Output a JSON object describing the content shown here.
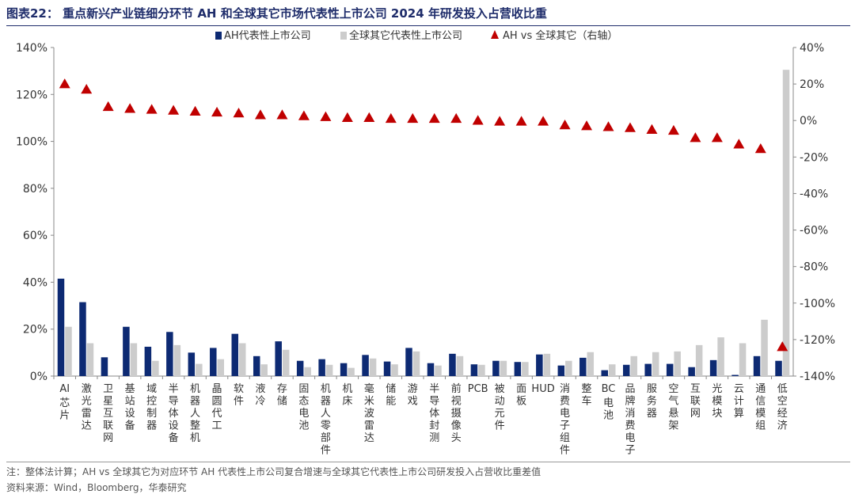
{
  "title": "图表22：  重点新兴产业链细分环节 AH 和全球其它市场代表性上市公司 2024 年研发投入占营收比重",
  "note": "注：整体法计算；AH vs  全球其它为对应环节 AH 代表性上市公司复合增速与全球其它代表性上市公司研发投入占营收比重差值",
  "source": "资料来源：Wind，Bloomberg，华泰研究",
  "colors": {
    "ah": "#0d2a73",
    "global": "#cccccc",
    "diff": "#c00000",
    "title": "#1f2d6b"
  },
  "chart_data": {
    "type": "bar",
    "legend_position": "top",
    "categories": [
      "AI芯片",
      "激光雷达",
      "卫星互联网",
      "基站设备",
      "域控制器",
      "半导体设备",
      "机器人整机",
      "晶圆代工",
      "软件",
      "液冷",
      "存储",
      "固态电池",
      "机器人零部件",
      "机床",
      "毫米波雷达",
      "储能",
      "游戏",
      "半导体封测",
      "前视摄像头",
      "PCB",
      "被动元件",
      "面板",
      "HUD",
      "消费电子组件",
      "整车",
      "BC电池",
      "品牌消费电子",
      "服务器",
      "空气悬架",
      "互联网",
      "光模块",
      "云计算",
      "通信模组",
      "低空经济"
    ],
    "series": [
      {
        "name": "AH代表性上市公司",
        "type": "bar",
        "axis": "left",
        "values": [
          41.5,
          31.5,
          8.0,
          21.0,
          12.5,
          18.8,
          10.0,
          12.0,
          18.0,
          8.5,
          14.8,
          6.5,
          7.2,
          5.5,
          9.0,
          6.2,
          12.0,
          5.5,
          9.5,
          5.0,
          6.5,
          6.0,
          9.2,
          4.5,
          7.8,
          2.5,
          4.8,
          5.2,
          5.2,
          3.8,
          6.8,
          0.5,
          8.5,
          6.5
        ]
      },
      {
        "name": "全球其它代表性上市公司",
        "type": "bar",
        "axis": "left",
        "values": [
          21.0,
          14.0,
          0,
          14.0,
          6.5,
          13.2,
          5.2,
          7.2,
          14.0,
          5.0,
          11.2,
          3.8,
          4.8,
          3.5,
          7.5,
          5.0,
          10.5,
          4.5,
          8.5,
          4.8,
          6.5,
          6.0,
          9.5,
          6.5,
          10.2,
          5.0,
          8.5,
          10.2,
          10.5,
          13.2,
          16.5,
          14.0,
          24.0,
          130.5
        ]
      },
      {
        "name": "AH vs 全球其它（右轴）",
        "type": "scatter",
        "axis": "right",
        "values": [
          20.0,
          17.0,
          7.5,
          6.5,
          6.0,
          5.5,
          5.0,
          4.5,
          4.0,
          3.0,
          3.0,
          2.5,
          2.0,
          1.5,
          1.5,
          1.0,
          1.0,
          1.0,
          1.0,
          0.0,
          -0.5,
          -0.5,
          -0.5,
          -2.5,
          -3.0,
          -3.5,
          -4.0,
          -5.0,
          -5.5,
          -9.5,
          -9.5,
          -13.0,
          -15.5,
          -124.0
        ]
      }
    ],
    "ylim_left": [
      0,
      140
    ],
    "yticks_left": [
      "0%",
      "20%",
      "40%",
      "60%",
      "80%",
      "100%",
      "120%",
      "140%"
    ],
    "ylim_right": [
      -140,
      40
    ],
    "yticks_right": [
      "40%",
      "20%",
      "0%",
      "-20%",
      "-40%",
      "-60%",
      "-80%",
      "-100%",
      "-120%",
      "-140%"
    ],
    "grid": false
  }
}
